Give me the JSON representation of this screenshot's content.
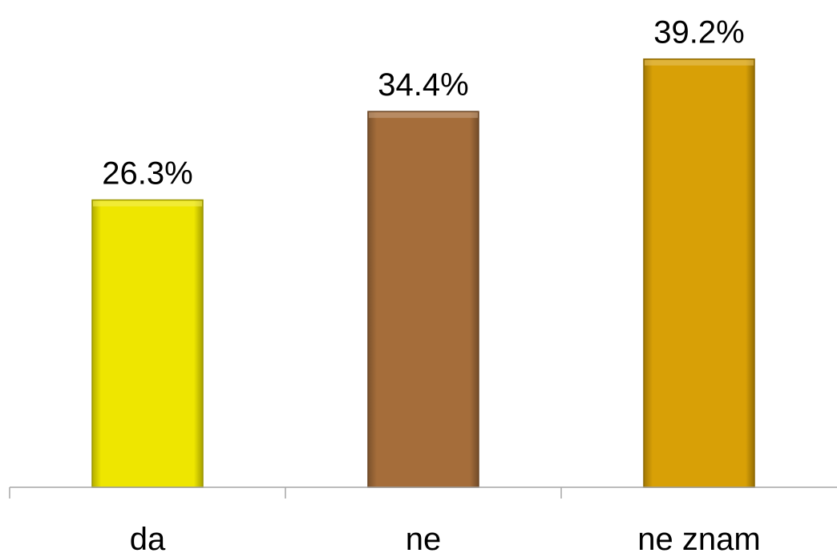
{
  "chart_data": {
    "type": "bar",
    "categories": [
      "da",
      "ne",
      "ne znam"
    ],
    "values": [
      26.3,
      34.4,
      39.2
    ],
    "data_labels": [
      "26.3%",
      "34.4%",
      "39.2%"
    ],
    "colors": [
      "#eee600",
      "#a56d3a",
      "#d8a006"
    ],
    "ylim": [
      0,
      45
    ],
    "grid": false,
    "legend": "none",
    "title": "",
    "xlabel": "",
    "ylabel": ""
  }
}
